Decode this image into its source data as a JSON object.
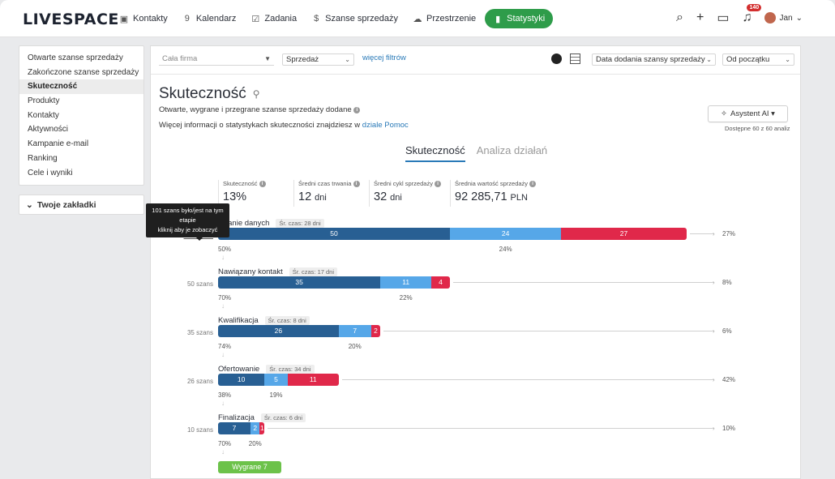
{
  "app": {
    "logo_a": "LIVE",
    "logo_b": "SPACE"
  },
  "nav": [
    {
      "icon": "contacts-icon",
      "glyph": "▣",
      "label": "Kontakty"
    },
    {
      "icon": "calendar-icon",
      "glyph": "9",
      "label": "Kalendarz"
    },
    {
      "icon": "tasks-icon",
      "glyph": "☑",
      "label": "Zadania"
    },
    {
      "icon": "dollar-icon",
      "glyph": "$",
      "label": "Szanse sprzedaży"
    },
    {
      "icon": "cloud-icon",
      "glyph": "☁",
      "label": "Przestrzenie"
    },
    {
      "icon": "chart-icon",
      "glyph": "▮",
      "label": "Statystyki"
    }
  ],
  "topright": {
    "notifications": "140",
    "user": "Jan"
  },
  "sidebar": {
    "items": [
      "Otwarte szanse sprzedaży",
      "Zakończone szanse sprzedaży",
      "Skuteczność",
      "Produkty",
      "Kontakty",
      "Aktywności",
      "Kampanie e-mail",
      "Ranking",
      "Cele i wyniki"
    ],
    "active_index": 2,
    "bookmarks": "Twoje zakładki"
  },
  "filters": {
    "company": "Cała firma",
    "pipeline": "Sprzedaż",
    "more": "więcej filtrów",
    "date_field": "Data dodania szansy sprzedaży",
    "period": "Od początku"
  },
  "page": {
    "title": "Skuteczność",
    "desc": "Otwarte, wygrane i przegrane szanse sprzedaży dodane",
    "more_info_text": "Więcej informacji o statystykach skuteczności znajdziesz w ",
    "more_info_link": "dziale Pomoc",
    "ai_button": "Asystent AI ▾",
    "ai_note": "Dostępne 60 z 60 analiz"
  },
  "tabs": [
    "Skuteczność",
    "Analiza działań"
  ],
  "kpis": [
    {
      "label": "Skuteczność",
      "value": "13%",
      "unit": ""
    },
    {
      "label": "Średni czas trwania",
      "value": "12",
      "unit": "dni"
    },
    {
      "label": "Średni cykl sprzedaży",
      "value": "32",
      "unit": "dni"
    },
    {
      "label": "Średnia wartość sprzedaży",
      "value": "92 285,71",
      "unit": "PLN"
    }
  ],
  "tooltip": {
    "line1": "101 szans było/jest na tym etapie",
    "line2": "kliknij aby je zobaczyć"
  },
  "colors": {
    "won": "#285f93",
    "open": "#56a7e8",
    "lost": "#e0284a",
    "accent": "#2e9c4a"
  },
  "funnel": [
    {
      "name": "Kwalifikowanie danych",
      "name_visible": "owanie danych",
      "avg": "Śr. czas: 28 dni",
      "count": "101 szans",
      "won": 50,
      "open": 24,
      "lost": 27,
      "lost_pct": "27%",
      "conv": "50%",
      "open_pct": "24%"
    },
    {
      "name": "Nawiązany kontakt",
      "avg": "Śr. czas: 17 dni",
      "count": "50 szans",
      "won": 35,
      "open": 11,
      "lost": 4,
      "lost_pct": "8%",
      "conv": "70%",
      "open_pct": "22%"
    },
    {
      "name": "Kwalifikacja",
      "avg": "Śr. czas: 8 dni",
      "count": "35 szans",
      "won": 26,
      "open": 7,
      "lost": 2,
      "lost_pct": "6%",
      "conv": "74%",
      "open_pct": "20%"
    },
    {
      "name": "Ofertowanie",
      "avg": "Śr. czas: 34 dni",
      "count": "26 szans",
      "won": 10,
      "open": 5,
      "lost": 11,
      "lost_pct": "42%",
      "conv": "38%",
      "open_pct": "19%"
    },
    {
      "name": "Finalizacja",
      "avg": "Śr. czas: 6 dni",
      "count": "10 szans",
      "won": 7,
      "open": 2,
      "lost": 1,
      "lost_pct": "10%",
      "conv": "70%",
      "open_pct": "20%"
    }
  ],
  "won_button": "Wygrane 7"
}
